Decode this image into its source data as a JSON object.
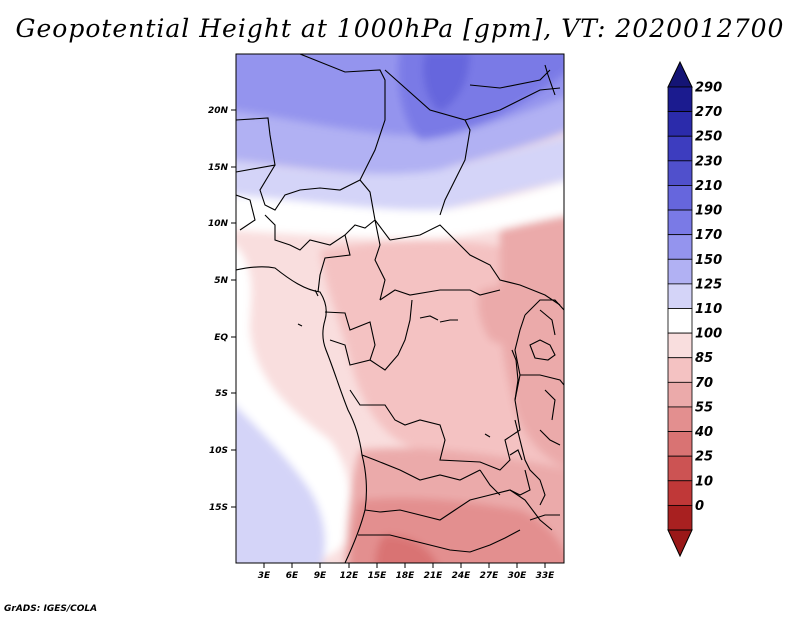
{
  "title": "Geopotential Height at 1000hPa [gpm], VT: 2020012700",
  "credit": "GrADS: IGES/COLA",
  "map": {
    "region": "Central Africa",
    "variable": "Geopotential Height",
    "level": "1000hPa",
    "units": "gpm",
    "valid_time": "2020012700",
    "lat_labels": [
      "20N",
      "15N",
      "10N",
      "5N",
      "EQ",
      "5S",
      "10S",
      "15S"
    ],
    "lon_labels": [
      "3E",
      "6E",
      "9E",
      "12E",
      "15E",
      "18E",
      "21E",
      "24E",
      "27E",
      "30E",
      "33E"
    ]
  },
  "colorbar": {
    "levels": [
      "290",
      "270",
      "250",
      "230",
      "210",
      "190",
      "170",
      "150",
      "125",
      "110",
      "100",
      "85",
      "70",
      "55",
      "40",
      "25",
      "10",
      "0"
    ],
    "colors": [
      "#1b1b8f",
      "#2b2bab",
      "#3d3dbf",
      "#5050cc",
      "#6666dd",
      "#7a7ae6",
      "#9494ee",
      "#b1b1f3",
      "#d4d4f8",
      "#ffffff",
      "#f9dede",
      "#f4c2c2",
      "#ebaaaa",
      "#e38f8f",
      "#d97373",
      "#cc5353",
      "#c03838",
      "#a82020"
    ],
    "top_color": "#141475",
    "bottom_color": "#9a1818"
  }
}
